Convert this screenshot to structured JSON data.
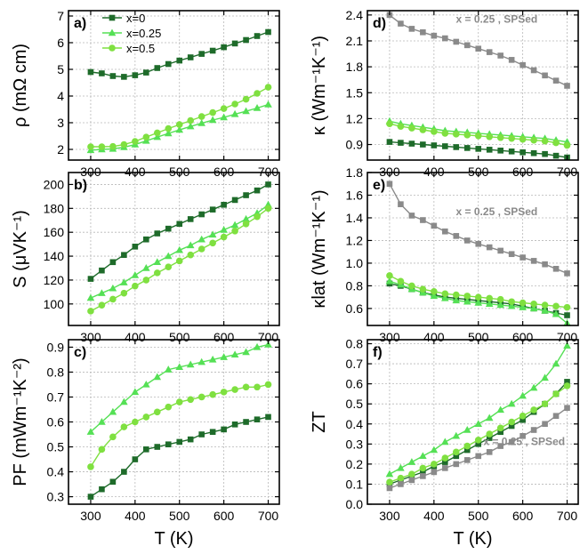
{
  "chart_data": {
    "type": "line",
    "xlabel": "T (K)",
    "x": [
      300,
      325,
      350,
      375,
      400,
      425,
      450,
      475,
      500,
      525,
      550,
      575,
      600,
      625,
      650,
      675,
      700
    ],
    "xlim": [
      250,
      725
    ],
    "xticks": [
      300,
      400,
      500,
      600,
      700
    ],
    "legend": {
      "placement": "top-left",
      "entries": [
        {
          "label": "x=0",
          "color": "#1e6b2a",
          "marker": "square"
        },
        {
          "label": "x=0.25",
          "color": "#55e055",
          "marker": "triangle"
        },
        {
          "label": "x=0.5",
          "color": "#7fe040",
          "marker": "circle"
        }
      ]
    },
    "panels": [
      {
        "id": "a",
        "label": "a)",
        "ylabel": "ρ (mΩ cm)",
        "ylim": [
          1.6,
          7.2
        ],
        "yticks": [
          2,
          3,
          4,
          5,
          6,
          7
        ],
        "ytick_labels": [
          "2",
          "3",
          "4",
          "5",
          "6",
          "7"
        ],
        "series": [
          {
            "name": "x=0",
            "color": "#1e6b2a",
            "marker": "square",
            "values": [
              4.9,
              4.85,
              4.75,
              4.72,
              4.78,
              4.88,
              5.05,
              5.2,
              5.33,
              5.45,
              5.58,
              5.7,
              5.83,
              5.97,
              6.1,
              6.25,
              6.4
            ]
          },
          {
            "name": "x=0.25",
            "color": "#55e055",
            "marker": "triangle",
            "values": [
              1.97,
              2.0,
              2.02,
              2.08,
              2.18,
              2.32,
              2.46,
              2.6,
              2.73,
              2.86,
              2.98,
              3.1,
              3.2,
              3.32,
              3.43,
              3.55,
              3.68
            ]
          },
          {
            "name": "x=0.5",
            "color": "#7fe040",
            "marker": "circle",
            "values": [
              2.1,
              2.1,
              2.11,
              2.18,
              2.3,
              2.46,
              2.62,
              2.78,
              2.93,
              3.08,
              3.23,
              3.38,
              3.53,
              3.7,
              3.88,
              4.1,
              4.33
            ]
          }
        ]
      },
      {
        "id": "b",
        "label": "b)",
        "ylabel": "S (μVK⁻¹)",
        "ylim": [
          82,
          210
        ],
        "yticks": [
          100,
          120,
          140,
          160,
          180,
          200
        ],
        "ytick_labels": [
          "100",
          "120",
          "140",
          "160",
          "180",
          "200"
        ],
        "series": [
          {
            "name": "x=0",
            "color": "#1e6b2a",
            "marker": "square",
            "values": [
              121,
              128,
              135,
              141,
              148,
              154,
              159,
              163,
              167,
              171,
              175,
              179,
              183,
              187,
              191,
              195,
              200
            ]
          },
          {
            "name": "x=0.25",
            "color": "#55e055",
            "marker": "triangle",
            "values": [
              105,
              109,
              113,
              118,
              124,
              130,
              135,
              140,
              145,
              149,
              154,
              158,
              162,
              166,
              171,
              176,
              183
            ]
          },
          {
            "name": "x=0.5",
            "color": "#7fe040",
            "marker": "circle",
            "values": [
              94,
              99,
              104,
              109,
              115,
              120,
              126,
              131,
              136,
              141,
              146,
              151,
              156,
              161,
              167,
              173,
              180
            ]
          }
        ]
      },
      {
        "id": "c",
        "label": "c)",
        "ylabel": "PF (mWm⁻¹K⁻²)",
        "ylim": [
          0.27,
          0.93
        ],
        "yticks": [
          0.3,
          0.4,
          0.5,
          0.6,
          0.7,
          0.8,
          0.9
        ],
        "ytick_labels": [
          "0.3",
          "0.4",
          "0.5",
          "0.6",
          "0.7",
          "0.8",
          "0.9"
        ],
        "series": [
          {
            "name": "x=0",
            "color": "#1e6b2a",
            "marker": "square",
            "values": [
              0.3,
              0.33,
              0.36,
              0.4,
              0.45,
              0.49,
              0.5,
              0.51,
              0.52,
              0.53,
              0.55,
              0.56,
              0.57,
              0.59,
              0.6,
              0.61,
              0.62
            ]
          },
          {
            "name": "x=0.25",
            "color": "#55e055",
            "marker": "triangle",
            "values": [
              0.56,
              0.6,
              0.64,
              0.68,
              0.72,
              0.75,
              0.78,
              0.81,
              0.82,
              0.83,
              0.84,
              0.85,
              0.86,
              0.87,
              0.88,
              0.9,
              0.91
            ]
          },
          {
            "name": "x=0.5",
            "color": "#7fe040",
            "marker": "circle",
            "values": [
              0.42,
              0.49,
              0.54,
              0.58,
              0.6,
              0.62,
              0.64,
              0.66,
              0.68,
              0.69,
              0.7,
              0.71,
              0.72,
              0.73,
              0.74,
              0.74,
              0.75
            ]
          }
        ]
      },
      {
        "id": "d",
        "label": "d)",
        "ylabel": "κ (Wm⁻¹K⁻¹)",
        "ylim": [
          0.72,
          2.45
        ],
        "yticks": [
          0.9,
          1.2,
          1.5,
          1.8,
          2.1,
          2.4
        ],
        "ytick_labels": [
          "0.9",
          "1.2",
          "1.5",
          "1.8",
          "2.1",
          "2.4"
        ],
        "annotation": "x = 0.25 , SPSed",
        "series": [
          {
            "name": "x=0",
            "color": "#1e6b2a",
            "marker": "square",
            "values": [
              0.93,
              0.92,
              0.91,
              0.9,
              0.89,
              0.88,
              0.87,
              0.86,
              0.85,
              0.84,
              0.83,
              0.82,
              0.81,
              0.8,
              0.79,
              0.77,
              0.75
            ]
          },
          {
            "name": "x=0.25",
            "color": "#55e055",
            "marker": "triangle",
            "values": [
              1.17,
              1.14,
              1.12,
              1.1,
              1.08,
              1.06,
              1.05,
              1.04,
              1.03,
              1.02,
              1.01,
              1.0,
              0.99,
              0.98,
              0.97,
              0.95,
              0.93
            ]
          },
          {
            "name": "x=0.5",
            "color": "#7fe040",
            "marker": "circle",
            "values": [
              1.14,
              1.11,
              1.09,
              1.07,
              1.05,
              1.03,
              1.02,
              1.01,
              1.0,
              0.99,
              0.98,
              0.97,
              0.96,
              0.95,
              0.94,
              0.92,
              0.89
            ]
          },
          {
            "name": "x = 0.25 , SPSed",
            "color": "#8a8a8a",
            "marker": "square",
            "values": [
              2.4,
              2.3,
              2.24,
              2.2,
              2.16,
              2.13,
              2.09,
              2.05,
              2.01,
              1.97,
              1.93,
              1.88,
              1.82,
              1.76,
              1.7,
              1.64,
              1.58
            ]
          }
        ]
      },
      {
        "id": "e",
        "label": "e)",
        "ylabel": "κlat (Wm⁻¹K⁻¹)",
        "ylim": [
          0.45,
          1.8
        ],
        "yticks": [
          0.6,
          0.8,
          1.0,
          1.2,
          1.4,
          1.6,
          1.8
        ],
        "ytick_labels": [
          "0.6",
          "0.8",
          "1.0",
          "1.2",
          "1.4",
          "1.6",
          "1.8"
        ],
        "annotation": "x = 0.25 , SPSed",
        "series": [
          {
            "name": "x=0",
            "color": "#1e6b2a",
            "marker": "square",
            "values": [
              0.82,
              0.8,
              0.77,
              0.74,
              0.72,
              0.7,
              0.69,
              0.68,
              0.67,
              0.66,
              0.65,
              0.64,
              0.62,
              0.6,
              0.58,
              0.56,
              0.54
            ]
          },
          {
            "name": "x=0.25",
            "color": "#55e055",
            "marker": "triangle",
            "values": [
              0.84,
              0.81,
              0.77,
              0.74,
              0.71,
              0.69,
              0.67,
              0.66,
              0.65,
              0.64,
              0.63,
              0.62,
              0.61,
              0.6,
              0.58,
              0.55,
              0.47
            ]
          },
          {
            "name": "x=0.5",
            "color": "#7fe040",
            "marker": "circle",
            "values": [
              0.89,
              0.84,
              0.8,
              0.77,
              0.75,
              0.73,
              0.72,
              0.71,
              0.7,
              0.69,
              0.68,
              0.66,
              0.65,
              0.64,
              0.63,
              0.62,
              0.61
            ]
          },
          {
            "name": "x = 0.25 , SPSed",
            "color": "#8a8a8a",
            "marker": "square",
            "values": [
              1.7,
              1.52,
              1.42,
              1.38,
              1.33,
              1.28,
              1.24,
              1.2,
              1.17,
              1.14,
              1.11,
              1.08,
              1.05,
              1.02,
              0.99,
              0.95,
              0.91
            ]
          }
        ]
      },
      {
        "id": "f",
        "label": "f)",
        "ylabel": "ZT",
        "ylim": [
          0.0,
          0.82
        ],
        "yticks": [
          0.0,
          0.1,
          0.2,
          0.3,
          0.4,
          0.5,
          0.6,
          0.7,
          0.8
        ],
        "ytick_labels": [
          "0.0",
          "0.1",
          "0.2",
          "0.3",
          "0.4",
          "0.5",
          "0.6",
          "0.7",
          "0.8"
        ],
        "annotation": "x = 0.25 , SPSed",
        "series": [
          {
            "name": "x=0",
            "color": "#1e6b2a",
            "marker": "square",
            "values": [
              0.1,
              0.12,
              0.14,
              0.16,
              0.19,
              0.21,
              0.24,
              0.27,
              0.3,
              0.33,
              0.36,
              0.39,
              0.42,
              0.46,
              0.5,
              0.55,
              0.61
            ]
          },
          {
            "name": "x=0.25",
            "color": "#55e055",
            "marker": "triangle",
            "values": [
              0.15,
              0.18,
              0.21,
              0.24,
              0.27,
              0.31,
              0.34,
              0.37,
              0.4,
              0.43,
              0.47,
              0.5,
              0.54,
              0.58,
              0.63,
              0.7,
              0.79
            ]
          },
          {
            "name": "x=0.5",
            "color": "#7fe040",
            "marker": "circle",
            "values": [
              0.11,
              0.13,
              0.15,
              0.18,
              0.2,
              0.23,
              0.26,
              0.29,
              0.32,
              0.35,
              0.38,
              0.41,
              0.44,
              0.47,
              0.5,
              0.55,
              0.59
            ]
          },
          {
            "name": "x = 0.25 , SPSed",
            "color": "#8a8a8a",
            "marker": "square",
            "values": [
              0.08,
              0.1,
              0.12,
              0.14,
              0.16,
              0.18,
              0.2,
              0.22,
              0.24,
              0.26,
              0.29,
              0.31,
              0.34,
              0.37,
              0.4,
              0.44,
              0.48
            ]
          }
        ]
      }
    ]
  }
}
